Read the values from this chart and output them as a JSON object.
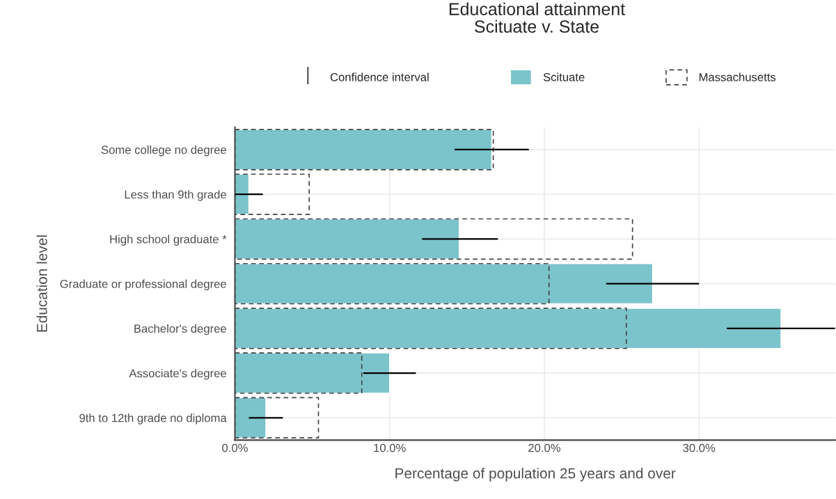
{
  "chart_data": {
    "type": "bar",
    "orientation": "horizontal",
    "title": "Educational attainment\nScituate v. State",
    "xlabel": "Percentage of population 25 years and over",
    "ylabel": "Education level",
    "categories": [
      "Some college no degree",
      "Less than 9th grade",
      "High school graduate *",
      "Graduate or professional degree",
      "Bachelor's degree",
      "Associate's degree",
      "9th to 12th grade no diploma"
    ],
    "series": [
      {
        "name": "Scituate",
        "color": "#7bc4cc",
        "values": [
          16.6,
          0.9,
          14.5,
          27.0,
          35.3,
          10.0,
          2.0
        ],
        "errors": [
          [
            14.2,
            19.0
          ],
          [
            0.0,
            1.8
          ],
          [
            12.1,
            17.0
          ],
          [
            24.0,
            30.0
          ],
          [
            31.8,
            38.8
          ],
          [
            8.3,
            11.7
          ],
          [
            0.9,
            3.1
          ]
        ]
      },
      {
        "name": "Massachusetts",
        "color": "#444444",
        "line_style": "dashed",
        "values": [
          16.7,
          4.8,
          25.7,
          20.3,
          25.3,
          8.2,
          5.4
        ]
      }
    ],
    "annotations": [
      "Confidence interval"
    ],
    "xlim": [
      0,
      38.8
    ],
    "xticks": [
      {
        "value": 0,
        "label": "0.0%"
      },
      {
        "value": 10,
        "label": "10.0%"
      },
      {
        "value": 20,
        "label": "20.0%"
      },
      {
        "value": 30,
        "label": "30.0%"
      }
    ],
    "grid": true,
    "legend": "top"
  }
}
